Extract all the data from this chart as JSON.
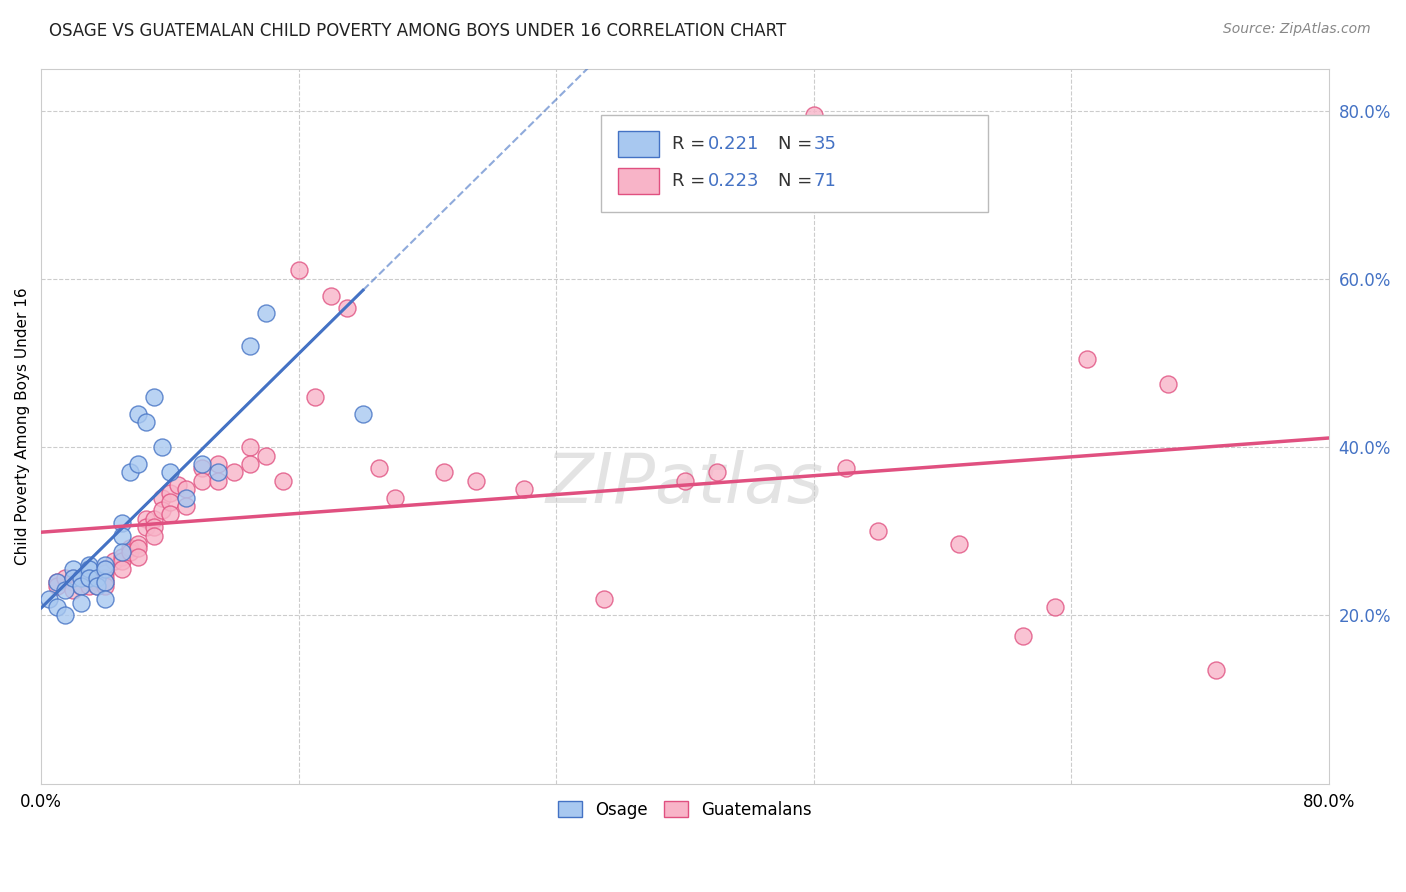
{
  "title": "OSAGE VS GUATEMALAN CHILD POVERTY AMONG BOYS UNDER 16 CORRELATION CHART",
  "source": "Source: ZipAtlas.com",
  "ylabel": "Child Poverty Among Boys Under 16",
  "xlim": [
    0.0,
    0.8
  ],
  "ylim": [
    0.0,
    0.85
  ],
  "color_blue": "#a8c8f0",
  "color_pink": "#f8b4c8",
  "color_blue_line": "#4472c4",
  "color_pink_line": "#e05080",
  "background": "#ffffff",
  "grid_color": "#cccccc",
  "right_tick_color": "#4472c4",
  "source_color": "#888888",
  "osage_x": [
    0.005,
    0.01,
    0.01,
    0.015,
    0.015,
    0.02,
    0.02,
    0.025,
    0.025,
    0.025,
    0.03,
    0.03,
    0.03,
    0.035,
    0.035,
    0.04,
    0.04,
    0.04,
    0.04,
    0.05,
    0.05,
    0.05,
    0.055,
    0.06,
    0.06,
    0.065,
    0.07,
    0.075,
    0.08,
    0.09,
    0.1,
    0.11,
    0.13,
    0.14,
    0.2
  ],
  "osage_y": [
    0.22,
    0.24,
    0.21,
    0.23,
    0.2,
    0.255,
    0.245,
    0.245,
    0.235,
    0.215,
    0.26,
    0.255,
    0.245,
    0.245,
    0.235,
    0.26,
    0.255,
    0.24,
    0.22,
    0.31,
    0.295,
    0.275,
    0.37,
    0.44,
    0.38,
    0.43,
    0.46,
    0.4,
    0.37,
    0.34,
    0.38,
    0.37,
    0.52,
    0.56,
    0.44
  ],
  "guatemalan_x": [
    0.01,
    0.01,
    0.015,
    0.02,
    0.02,
    0.02,
    0.025,
    0.025,
    0.03,
    0.03,
    0.03,
    0.035,
    0.035,
    0.035,
    0.04,
    0.04,
    0.04,
    0.04,
    0.04,
    0.045,
    0.05,
    0.05,
    0.05,
    0.055,
    0.055,
    0.06,
    0.06,
    0.06,
    0.065,
    0.065,
    0.07,
    0.07,
    0.07,
    0.075,
    0.075,
    0.08,
    0.08,
    0.08,
    0.085,
    0.09,
    0.09,
    0.1,
    0.1,
    0.11,
    0.11,
    0.12,
    0.13,
    0.13,
    0.14,
    0.15,
    0.16,
    0.17,
    0.18,
    0.19,
    0.21,
    0.22,
    0.25,
    0.27,
    0.3,
    0.35,
    0.4,
    0.42,
    0.48,
    0.5,
    0.52,
    0.57,
    0.61,
    0.63,
    0.65,
    0.7,
    0.73
  ],
  "guatemalan_y": [
    0.24,
    0.235,
    0.245,
    0.245,
    0.24,
    0.23,
    0.245,
    0.235,
    0.245,
    0.24,
    0.235,
    0.245,
    0.24,
    0.235,
    0.255,
    0.25,
    0.245,
    0.24,
    0.235,
    0.265,
    0.27,
    0.265,
    0.255,
    0.28,
    0.275,
    0.285,
    0.28,
    0.27,
    0.315,
    0.305,
    0.315,
    0.305,
    0.295,
    0.34,
    0.325,
    0.345,
    0.335,
    0.32,
    0.355,
    0.35,
    0.33,
    0.375,
    0.36,
    0.38,
    0.36,
    0.37,
    0.4,
    0.38,
    0.39,
    0.36,
    0.61,
    0.46,
    0.58,
    0.565,
    0.375,
    0.34,
    0.37,
    0.36,
    0.35,
    0.22,
    0.36,
    0.37,
    0.795,
    0.375,
    0.3,
    0.285,
    0.175,
    0.21,
    0.505,
    0.475,
    0.135
  ]
}
